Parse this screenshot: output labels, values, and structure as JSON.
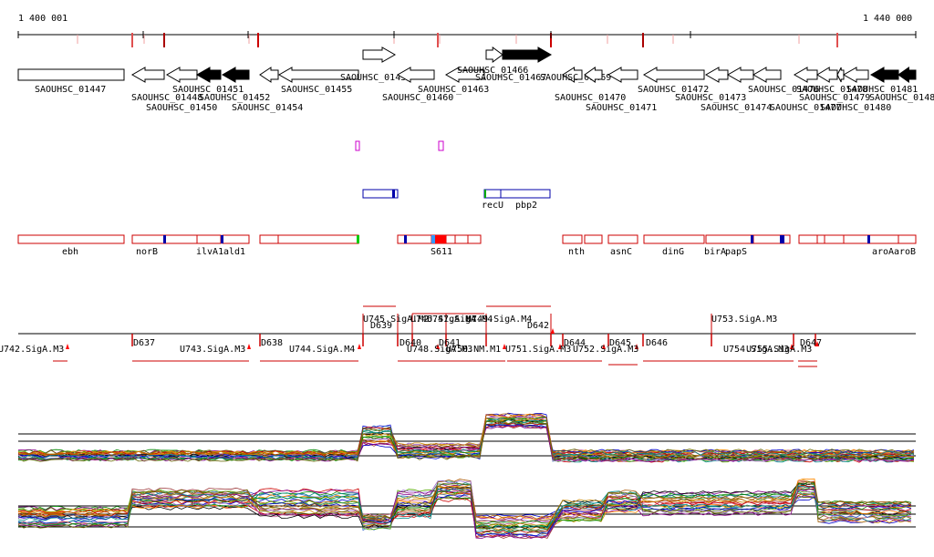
{
  "coordinates": {
    "start_label": "1 400 001",
    "end_label": "1 440 000"
  },
  "genes": [
    {
      "label": "SAOUHSC_01447",
      "strand": "+",
      "fill": "white"
    },
    {
      "label": "SAOUHSC_01448",
      "strand": "-",
      "fill": "white"
    },
    {
      "label": "SAOUHSC_01450",
      "strand": "-",
      "fill": "white"
    },
    {
      "label": "SAOUHSC_01451",
      "strand": "-",
      "fill": "black"
    },
    {
      "label": "SAOUHSC_01452",
      "strand": "-",
      "fill": "black"
    },
    {
      "label": "SAOUHSC_01454",
      "strand": "-",
      "fill": "white"
    },
    {
      "label": "SAOUHSC_01455",
      "strand": "-",
      "fill": "white"
    },
    {
      "label": "SAOUHSC_01456",
      "strand": "+",
      "fill": "white"
    },
    {
      "label": "SAOUHSC_01460",
      "strand": "-",
      "fill": "white"
    },
    {
      "label": "SAOUHSC_01463",
      "strand": "-",
      "fill": "white"
    },
    {
      "label": "SAOUHSC_01466",
      "strand": "+",
      "fill": "white"
    },
    {
      "label": "SAOUHSC_01467",
      "strand": "+",
      "fill": "black"
    },
    {
      "label": "SAOUHSC_01469",
      "strand": "-",
      "fill": "white"
    },
    {
      "label": "SAOUHSC_01470",
      "strand": "-",
      "fill": "white"
    },
    {
      "label": "SAOUHSC_01471",
      "strand": "-",
      "fill": "white"
    },
    {
      "label": "SAOUHSC_01472",
      "strand": "-",
      "fill": "white"
    },
    {
      "label": "SAOUHSC_01473",
      "strand": "-",
      "fill": "white"
    },
    {
      "label": "SAOUHSC_01474",
      "strand": "-",
      "fill": "white"
    },
    {
      "label": "SAOUHSC_01476",
      "strand": "-",
      "fill": "white"
    },
    {
      "label": "SAOUHSC_01477",
      "strand": "-",
      "fill": "white"
    },
    {
      "label": "SAOUHSC_01478",
      "strand": "-",
      "fill": "white"
    },
    {
      "label": "SAOUHSC_01479",
      "strand": "-",
      "fill": "white"
    },
    {
      "label": "SAOUHSC_01480",
      "strand": "-",
      "fill": "white"
    },
    {
      "label": "SAOUHSC_01481",
      "strand": "-",
      "fill": "black"
    },
    {
      "label": "SAOUHSC_01482",
      "strand": "-",
      "fill": "black"
    }
  ],
  "operons": [
    {
      "label": "recU"
    },
    {
      "label": "pbp2"
    }
  ],
  "annotated_genes": [
    "ebh",
    "norB",
    "ilvA1",
    "ald1",
    "S611",
    "nth",
    "asnC",
    "dinG",
    "birA",
    "papS",
    "aroA",
    "aroB"
  ],
  "transcripts": [
    "U742.SigA.M3",
    "D637",
    "U743.SigA.M3",
    "D638",
    "U744.SigA.M4",
    "U745.SigA.M2",
    "D639",
    "U746.SigA.M4",
    "D640",
    "U747.SigA.M4",
    "D641",
    "U748.SigA.M3",
    "U749.SigA.M4",
    "U750.NM.M1",
    "D642",
    "U751.SigA.M3",
    "D644",
    "U752.SigA.M3",
    "D645",
    "U753.SigA.M3",
    "D646",
    "U754.SigA.M3",
    "U755.SigA.M3",
    "D647"
  ],
  "colors": {
    "gene_outline": "#000000",
    "track_red": "#cc0000",
    "operon_blue": "#0000aa",
    "operon_green": "#00aa00",
    "primer_magenta": "#cc00cc",
    "highlight_blue": "#0000aa",
    "highlight_red": "#ff0000",
    "highlight_cyan": "#3399ff"
  }
}
